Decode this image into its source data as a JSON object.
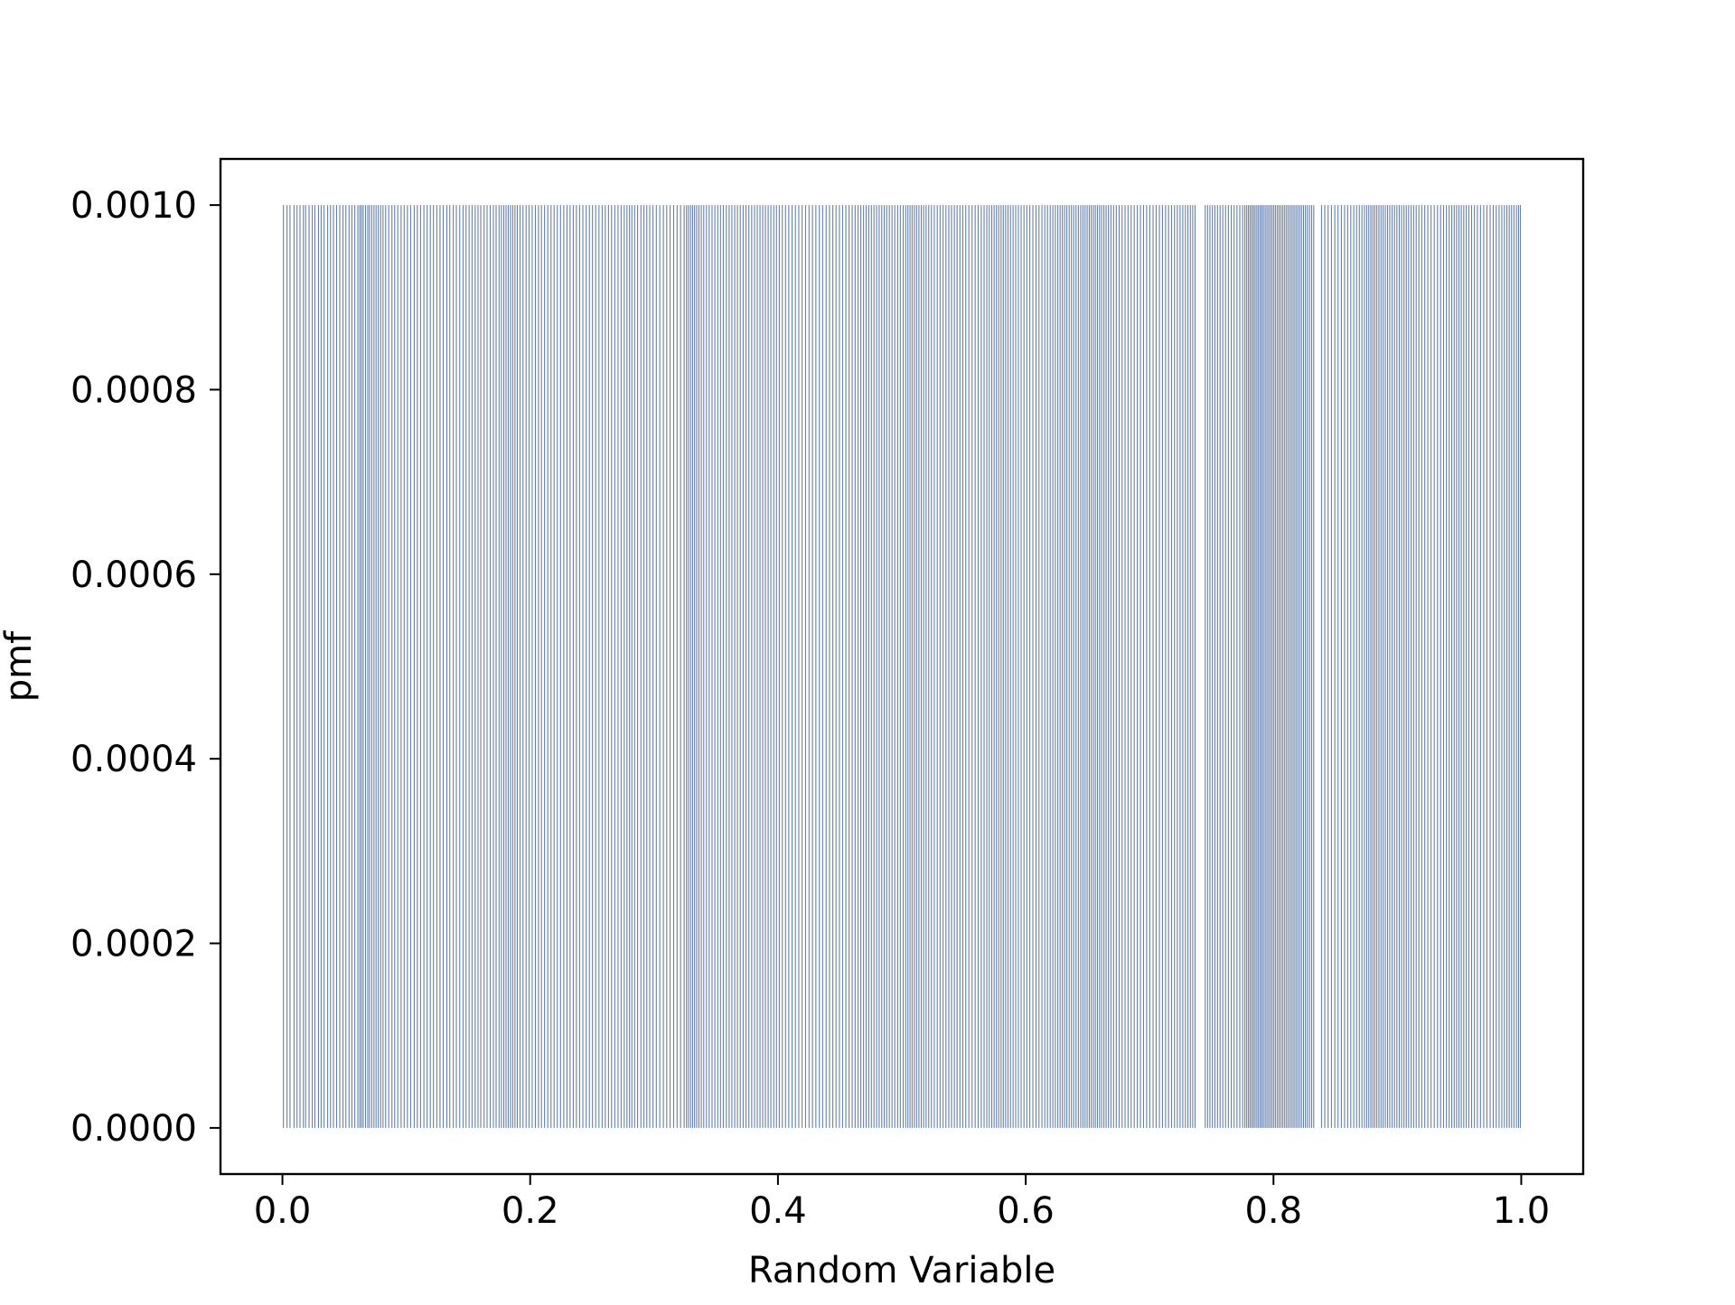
{
  "chart_data": {
    "type": "bar",
    "title": "",
    "xlabel": "Random Variable",
    "ylabel": "pmf",
    "xlim": [
      -0.05,
      1.05
    ],
    "ylim": [
      -5e-05,
      0.00105
    ],
    "xticks": [
      0.0,
      0.2,
      0.4,
      0.6,
      0.8,
      1.0
    ],
    "xtick_labels": [
      "0.0",
      "0.2",
      "0.4",
      "0.6",
      "0.8",
      "1.0"
    ],
    "yticks": [
      0.0,
      0.0002,
      0.0004,
      0.0006,
      0.0008,
      0.001
    ],
    "ytick_labels": [
      "0.0000",
      "0.0002",
      "0.0004",
      "0.0006",
      "0.0008",
      "0.0010"
    ],
    "grid": false,
    "legend": "none",
    "bar_color": "#4c6a9c",
    "series": [
      {
        "pmf_value": 0.001,
        "bar_width": 0.0005,
        "x": [
          0.0008,
          0.0037,
          0.0061,
          0.0094,
          0.0118,
          0.0142,
          0.0169,
          0.0187,
          0.0215,
          0.0241,
          0.0262,
          0.0291,
          0.0313,
          0.0336,
          0.0365,
          0.0388,
          0.0412,
          0.0437,
          0.0463,
          0.0489,
          0.0512,
          0.0538,
          0.0561,
          0.0584,
          0.0609,
          0.0625,
          0.0638,
          0.0652,
          0.0671,
          0.0689,
          0.0703,
          0.0721,
          0.0739,
          0.0756,
          0.0774,
          0.0793,
          0.0812,
          0.0833,
          0.0858,
          0.0884,
          0.0906,
          0.0931,
          0.0958,
          0.0983,
          0.1009,
          0.1035,
          0.1064,
          0.1089,
          0.1115,
          0.1142,
          0.1168,
          0.1194,
          0.1219,
          0.1246,
          0.1272,
          0.1298,
          0.1327,
          0.1351,
          0.1379,
          0.1404,
          0.1431,
          0.1458,
          0.1482,
          0.1507,
          0.1531,
          0.1556,
          0.1579,
          0.1601,
          0.1628,
          0.1652,
          0.1677,
          0.1703,
          0.1725,
          0.1749,
          0.1768,
          0.1787,
          0.1805,
          0.1823,
          0.1841,
          0.1859,
          0.1877,
          0.1896,
          0.1918,
          0.1942,
          0.1967,
          0.1991,
          0.2016,
          0.2042,
          0.2067,
          0.2091,
          0.2116,
          0.2142,
          0.2168,
          0.2193,
          0.2219,
          0.2245,
          0.2271,
          0.2297,
          0.2322,
          0.2348,
          0.2373,
          0.2399,
          0.2425,
          0.2452,
          0.2478,
          0.2503,
          0.2529,
          0.2555,
          0.2581,
          0.2606,
          0.2632,
          0.2657,
          0.2683,
          0.2709,
          0.2734,
          0.2759,
          0.2781,
          0.2802,
          0.2821,
          0.2843,
          0.2867,
          0.2894,
          0.2918,
          0.2941,
          0.2965,
          0.2991,
          0.3018,
          0.3046,
          0.3075,
          0.3102,
          0.3129,
          0.3158,
          0.3186,
          0.3214,
          0.3243,
          0.3262,
          0.3278,
          0.3295,
          0.3311,
          0.3327,
          0.3344,
          0.3362,
          0.3381,
          0.3401,
          0.3423,
          0.3445,
          0.3468,
          0.3491,
          0.3514,
          0.3536,
          0.3559,
          0.3583,
          0.3606,
          0.3628,
          0.3651,
          0.3673,
          0.3696,
          0.3719,
          0.3742,
          0.3765,
          0.3788,
          0.3811,
          0.3833,
          0.3855,
          0.3877,
          0.3899,
          0.3921,
          0.3943,
          0.3966,
          0.3988,
          0.4011,
          0.4035,
          0.4061,
          0.4087,
          0.4114,
          0.4141,
          0.4168,
          0.4195,
          0.4223,
          0.4251,
          0.4279,
          0.4306,
          0.4334,
          0.4361,
          0.4389,
          0.4416,
          0.4443,
          0.4469,
          0.4496,
          0.4522,
          0.4548,
          0.4574,
          0.4599,
          0.4623,
          0.4647,
          0.4669,
          0.4691,
          0.4712,
          0.4733,
          0.4754,
          0.4775,
          0.4796,
          0.4817,
          0.4838,
          0.4858,
          0.4878,
          0.4899,
          0.4921,
          0.4943,
          0.4966,
          0.4988,
          0.5011,
          0.5031,
          0.5049,
          0.5066,
          0.5083,
          0.5101,
          0.5119,
          0.5138,
          0.5157,
          0.5176,
          0.5196,
          0.5217,
          0.5239,
          0.5262,
          0.5286,
          0.5309,
          0.5333,
          0.5356,
          0.5379,
          0.5401,
          0.5424,
          0.5446,
          0.5469,
          0.5492,
          0.5516,
          0.5541,
          0.5567,
          0.5592,
          0.5616,
          0.5641,
          0.5664,
          0.5686,
          0.5706,
          0.5726,
          0.5745,
          0.5764,
          0.5782,
          0.5801,
          0.5819,
          0.5838,
          0.5857,
          0.5877,
          0.5898,
          0.5919,
          0.5941,
          0.5963,
          0.5986,
          0.6009,
          0.6033,
          0.6058,
          0.6083,
          0.6107,
          0.6131,
          0.6154,
          0.6176,
          0.6198,
          0.6219,
          0.6239,
          0.6259,
          0.6278,
          0.6296,
          0.6314,
          0.6332,
          0.6351,
          0.6369,
          0.6387,
          0.6406,
          0.6425,
          0.6444,
          0.6462,
          0.6479,
          0.6496,
          0.6513,
          0.6529,
          0.6546,
          0.6562,
          0.6579,
          0.6596,
          0.6613,
          0.6631,
          0.6649,
          0.6668,
          0.6688,
          0.6709,
          0.6731,
          0.6754,
          0.6778,
          0.6802,
          0.6826,
          0.6851,
          0.6876,
          0.6901,
          0.6926,
          0.6951,
          0.6976,
          0.7002,
          0.7028,
          0.7053,
          0.7079,
          0.7104,
          0.7129,
          0.7153,
          0.7177,
          0.7201,
          0.7224,
          0.7246,
          0.7268,
          0.7289,
          0.7309,
          0.7329,
          0.7348,
          0.7367,
          0.7449,
          0.7468,
          0.7487,
          0.7507,
          0.7527,
          0.7548,
          0.7569,
          0.7591,
          0.7613,
          0.7636,
          0.7659,
          0.7682,
          0.7705,
          0.7728,
          0.7751,
          0.7769,
          0.7784,
          0.7798,
          0.7812,
          0.7826,
          0.7839,
          0.7852,
          0.7866,
          0.7879,
          0.7893,
          0.7906,
          0.7919,
          0.7933,
          0.7947,
          0.7961,
          0.7975,
          0.7989,
          0.8003,
          0.8017,
          0.8032,
          0.8046,
          0.8061,
          0.8076,
          0.8091,
          0.8106,
          0.8121,
          0.8136,
          0.8151,
          0.8166,
          0.8181,
          0.8196,
          0.8211,
          0.8226,
          0.8242,
          0.8258,
          0.8274,
          0.8291,
          0.8308,
          0.8325,
          0.8388,
          0.8414,
          0.8441,
          0.8468,
          0.8495,
          0.8521,
          0.8548,
          0.8574,
          0.8599,
          0.8624,
          0.8648,
          0.8671,
          0.8693,
          0.8714,
          0.8734,
          0.8752,
          0.8769,
          0.8786,
          0.8802,
          0.8818,
          0.8834,
          0.8851,
          0.8868,
          0.8885,
          0.8903,
          0.8921,
          0.8939,
          0.8958,
          0.8977,
          0.8996,
          0.9015,
          0.9034,
          0.9053,
          0.9072,
          0.9091,
          0.9111,
          0.9131,
          0.9152,
          0.9174,
          0.9197,
          0.9221,
          0.9246,
          0.9272,
          0.9298,
          0.9324,
          0.9349,
          0.9373,
          0.9396,
          0.9418,
          0.9439,
          0.9459,
          0.9478,
          0.9497,
          0.9516,
          0.9536,
          0.9556,
          0.9577,
          0.9599,
          0.9622,
          0.9646,
          0.9671,
          0.9697,
          0.9723,
          0.9749,
          0.9774,
          0.9798,
          0.9821,
          0.9843,
          0.9864,
          0.9884,
          0.9903,
          0.9922,
          0.9941,
          0.9961,
          0.9978,
          0.9993
        ]
      }
    ]
  }
}
